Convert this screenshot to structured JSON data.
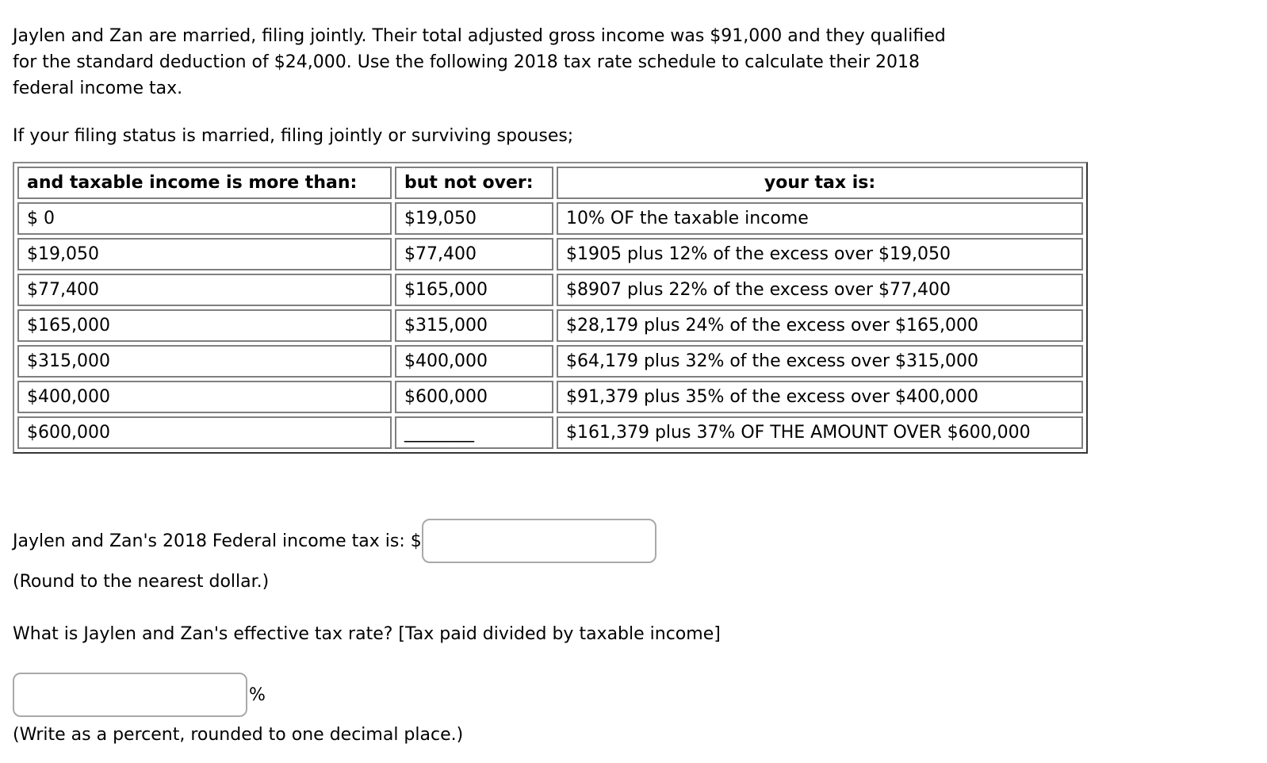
{
  "problem": {
    "intro_lines": [
      "Jaylen and Zan are married, filing jointly. Their total adjusted gross income was $91,000 and they qualified",
      "for the standard deduction of $24,000. Use the following 2018 tax rate schedule to calculate their 2018",
      "federal income tax."
    ],
    "filing_status_line": "If your filing status is married, filing jointly or surviving spouses;"
  },
  "tax_table": {
    "headers": {
      "more_than": "and taxable income is more than:",
      "not_over": "but not over:",
      "your_tax": "your tax is:"
    },
    "rows": [
      {
        "more_than": "$ 0",
        "not_over": "$19,050",
        "tax": "10% OF the taxable income"
      },
      {
        "more_than": "$19,050",
        "not_over": "$77,400",
        "tax": "$1905 plus 12% of the excess over $19,050"
      },
      {
        "more_than": "$77,400",
        "not_over": "$165,000",
        "tax": "$8907 plus 22% of the excess over $77,400"
      },
      {
        "more_than": "$165,000",
        "not_over": "$315,000",
        "tax": "$28,179 plus 24% of the excess over $165,000"
      },
      {
        "more_than": "$315,000",
        "not_over": "$400,000",
        "tax": "$64,179 plus 32% of the excess over $315,000"
      },
      {
        "more_than": "$400,000",
        "not_over": "$600,000",
        "tax": "$91,379 plus 35% of the excess over $400,000"
      },
      {
        "more_than": "$600,000",
        "not_over": "________",
        "tax": "$161,379 plus 37% OF THE AMOUNT OVER $600,000"
      }
    ]
  },
  "answers": {
    "federal_tax_label": "Jaylen and Zan's 2018 Federal income tax is: $",
    "federal_tax_value": "",
    "federal_tax_hint": "(Round to the nearest dollar.)",
    "effective_rate_question": "What is Jaylen and Zan's effective tax rate? [Tax paid divided by taxable income]",
    "effective_rate_value": "",
    "percent_sign": "%",
    "effective_rate_hint": "(Write as a percent, rounded to one decimal place.)"
  }
}
